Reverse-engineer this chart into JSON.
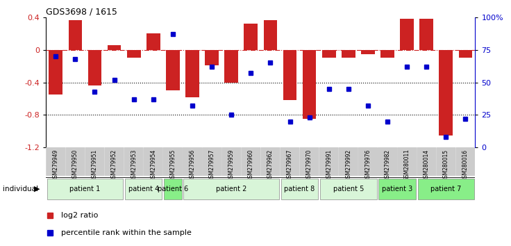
{
  "title": "GDS3698 / 1615",
  "samples": [
    "GSM279949",
    "GSM279950",
    "GSM279951",
    "GSM279952",
    "GSM279953",
    "GSM279954",
    "GSM279955",
    "GSM279956",
    "GSM279957",
    "GSM279959",
    "GSM279960",
    "GSM279962",
    "GSM279967",
    "GSM279970",
    "GSM279991",
    "GSM279992",
    "GSM279976",
    "GSM279982",
    "GSM280011",
    "GSM280014",
    "GSM280015",
    "GSM280016"
  ],
  "log2_ratio": [
    -0.55,
    0.36,
    -0.44,
    0.06,
    -0.1,
    0.2,
    -0.5,
    -0.58,
    -0.19,
    -0.4,
    0.32,
    0.36,
    -0.62,
    -0.85,
    -0.1,
    -0.1,
    -0.05,
    -0.1,
    0.38,
    0.38,
    -1.05,
    -0.1
  ],
  "percentile": [
    70,
    68,
    43,
    52,
    37,
    37,
    87,
    32,
    62,
    25,
    57,
    65,
    20,
    23,
    45,
    45,
    32,
    20,
    62,
    62,
    8,
    22
  ],
  "patients": [
    {
      "label": "patient 1",
      "start": 0,
      "end": 4,
      "color": "#d8f5d8"
    },
    {
      "label": "patient 4",
      "start": 4,
      "end": 6,
      "color": "#d8f5d8"
    },
    {
      "label": "patient 6",
      "start": 6,
      "end": 7,
      "color": "#88ee88"
    },
    {
      "label": "patient 2",
      "start": 7,
      "end": 12,
      "color": "#d8f5d8"
    },
    {
      "label": "patient 8",
      "start": 12,
      "end": 14,
      "color": "#d8f5d8"
    },
    {
      "label": "patient 5",
      "start": 14,
      "end": 17,
      "color": "#d8f5d8"
    },
    {
      "label": "patient 3",
      "start": 17,
      "end": 19,
      "color": "#88ee88"
    },
    {
      "label": "patient 7",
      "start": 19,
      "end": 22,
      "color": "#88ee88"
    }
  ],
  "bar_color": "#cc2222",
  "dot_color": "#0000cc",
  "ylim_left": [
    -1.2,
    0.4
  ],
  "ylim_right": [
    0,
    100
  ],
  "right_ticks": [
    0,
    25,
    50,
    75,
    100
  ],
  "right_tick_labels": [
    "0",
    "25",
    "50",
    "75",
    "100%"
  ],
  "left_ticks": [
    0.4,
    0.0,
    -0.4,
    -0.8,
    -1.2
  ],
  "left_tick_labels": [
    "0.4",
    "0",
    "-0.4",
    "-0.8",
    "-1.2"
  ],
  "hline_0": 0.0,
  "hline_m04": -0.4,
  "hline_m08": -0.8,
  "xtick_bg": "#cccccc",
  "fig_bg": "#ffffff",
  "plot_bg": "#ffffff"
}
